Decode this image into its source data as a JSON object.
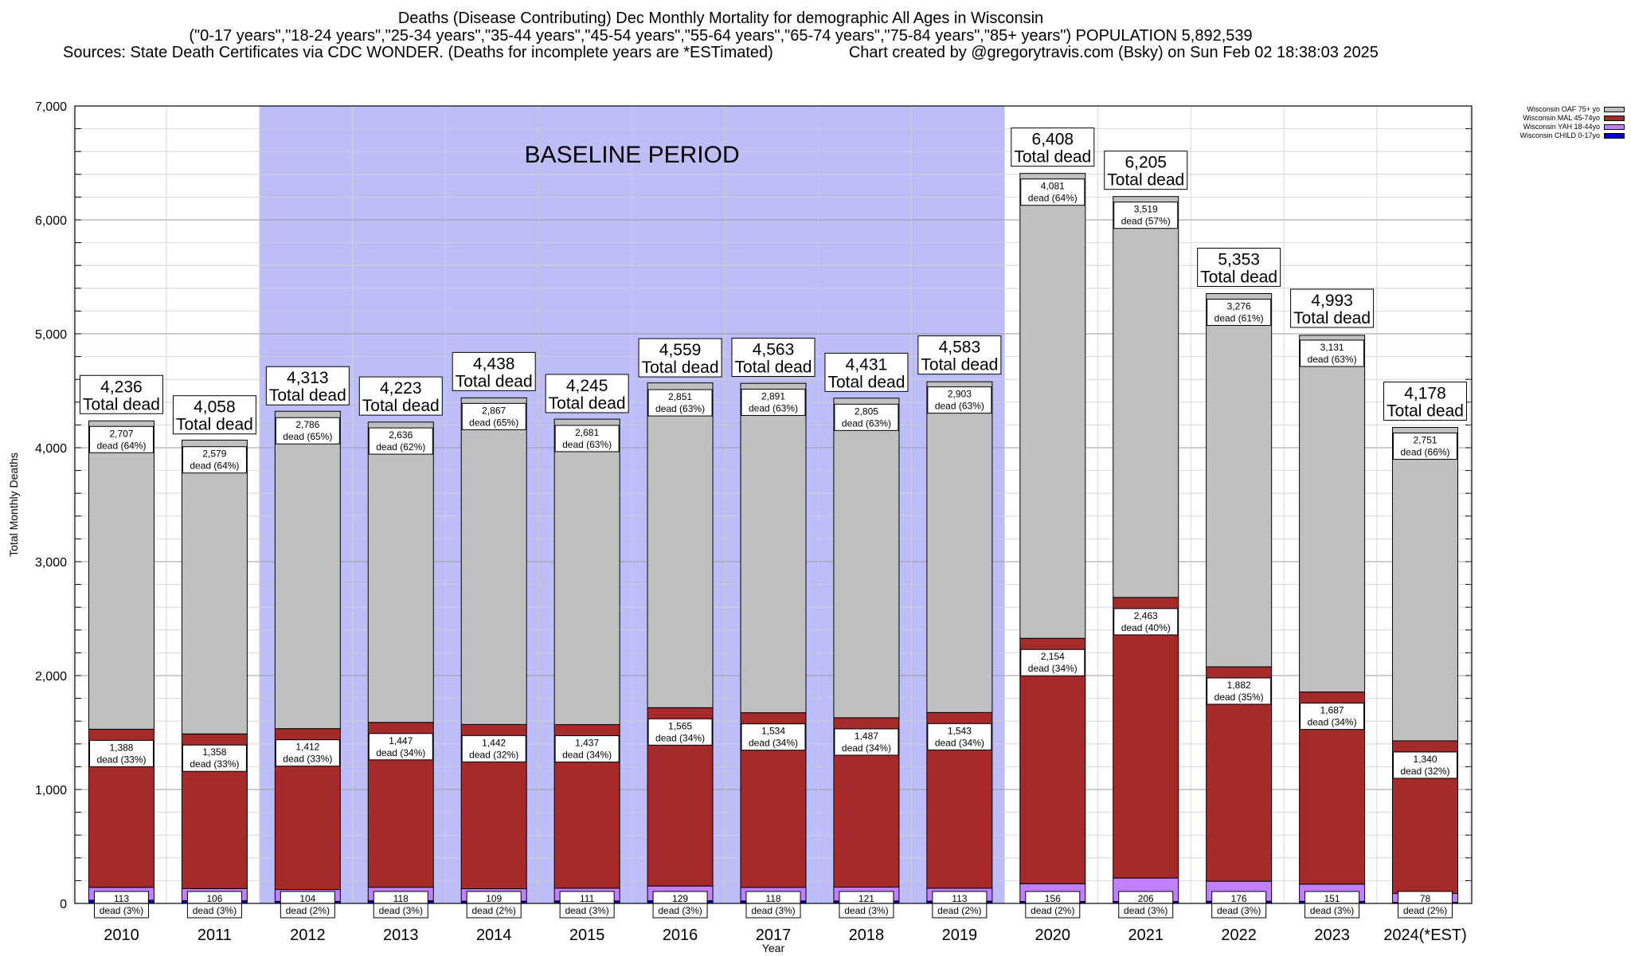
{
  "header": {
    "title": "Deaths (Disease Contributing) Dec Monthly Mortality for demographic All Ages in Wisconsin",
    "subtitle": "(\"0-17 years\",\"18-24 years\",\"25-34 years\",\"35-44 years\",\"45-54 years\",\"55-64 years\",\"65-74 years\",\"75-84 years\",\"85+ years\") POPULATION 5,892,539",
    "source": "Sources: State Death Certificates via CDC WONDER. (Deaths for incomplete years are *ESTimated)",
    "credit": "Chart created by @gregorytravis.com (Bsky) on Sun Feb 02 18:38:03 2025"
  },
  "colors": {
    "baseline": "#bdbdfa",
    "oaf": "#c0c0c0",
    "mal": "#a52a2a",
    "yah": "#c080ff",
    "child": "#0000c8"
  },
  "chart_data": {
    "type": "bar",
    "stacked": true,
    "title": "Deaths (Disease Contributing) Dec Monthly Mortality for demographic All Ages in Wisconsin",
    "xlabel": "Year",
    "ylabel": "Total Monthly Deaths",
    "ylim": [
      0,
      7000
    ],
    "yticks": [
      "0",
      "1,000",
      "2,000",
      "3,000",
      "4,000",
      "5,000",
      "6,000",
      "7,000"
    ],
    "grid": true,
    "legend_position": "top-right",
    "categories": [
      "2010",
      "2011",
      "2012",
      "2013",
      "2014",
      "2015",
      "2016",
      "2017",
      "2018",
      "2019",
      "2020",
      "2021",
      "2022",
      "2023",
      "2024(*EST)"
    ],
    "baseline": {
      "label": "BASELINE PERIOD",
      "from": "2012",
      "to": "2019"
    },
    "totals": [
      4236,
      4058,
      4313,
      4223,
      4438,
      4245,
      4559,
      4563,
      4431,
      4583,
      6408,
      6205,
      5353,
      4993,
      4178
    ],
    "total_labels": [
      "4,236",
      "4,058",
      "4,313",
      "4,223",
      "4,438",
      "4,245",
      "4,559",
      "4,563",
      "4,431",
      "4,583",
      "6,408",
      "6,205",
      "5,353",
      "4,993",
      "4,178"
    ],
    "total_suffix": "Total dead",
    "series": [
      {
        "name": "Wisconsin CHILD 0-17yo",
        "color": "#0000c8",
        "values": [
          28,
          24,
          18,
          24,
          20,
          22,
          24,
          22,
          22,
          20,
          17,
          17,
          19,
          18,
          9
        ]
      },
      {
        "name": "Wisconsin YAH 18-44yo",
        "color": "#c080ff",
        "values": [
          113,
          106,
          104,
          118,
          109,
          111,
          129,
          118,
          121,
          113,
          156,
          206,
          176,
          151,
          78
        ],
        "labels": [
          "113",
          "106",
          "104",
          "118",
          "109",
          "111",
          "129",
          "118",
          "121",
          "113",
          "156",
          "206",
          "176",
          "151",
          "78"
        ],
        "pct": [
          "3%",
          "3%",
          "2%",
          "3%",
          "2%",
          "3%",
          "3%",
          "3%",
          "3%",
          "2%",
          "2%",
          "3%",
          "3%",
          "3%",
          "2%"
        ]
      },
      {
        "name": "Wisconsin MAL 45-74yo",
        "color": "#a52a2a",
        "values": [
          1388,
          1358,
          1412,
          1447,
          1442,
          1437,
          1565,
          1534,
          1487,
          1543,
          2154,
          2463,
          1882,
          1687,
          1340
        ],
        "labels": [
          "1,388",
          "1,358",
          "1,412",
          "1,447",
          "1,442",
          "1,437",
          "1,565",
          "1,534",
          "1,487",
          "1,543",
          "2,154",
          "2,463",
          "1,882",
          "1,687",
          "1,340"
        ],
        "pct": [
          "33%",
          "33%",
          "33%",
          "34%",
          "32%",
          "34%",
          "34%",
          "34%",
          "34%",
          "34%",
          "34%",
          "40%",
          "35%",
          "34%",
          "32%"
        ]
      },
      {
        "name": "Wisconsin OAF 75+ yo",
        "color": "#c0c0c0",
        "values": [
          2707,
          2579,
          2786,
          2636,
          2867,
          2681,
          2851,
          2891,
          2805,
          2903,
          4081,
          3519,
          3276,
          3131,
          2751
        ],
        "labels": [
          "2,707",
          "2,579",
          "2,786",
          "2,636",
          "2,867",
          "2,681",
          "2,851",
          "2,891",
          "2,805",
          "2,903",
          "4,081",
          "3,519",
          "3,276",
          "3,131",
          "2,751"
        ],
        "pct": [
          "64%",
          "64%",
          "65%",
          "62%",
          "65%",
          "63%",
          "63%",
          "63%",
          "63%",
          "63%",
          "64%",
          "57%",
          "61%",
          "63%",
          "66%"
        ]
      }
    ],
    "legend": [
      "Wisconsin OAF 75+ yo",
      "Wisconsin MAL 45-74yo",
      "Wisconsin YAH 18-44yo",
      "Wisconsin CHILD 0-17yo"
    ]
  }
}
